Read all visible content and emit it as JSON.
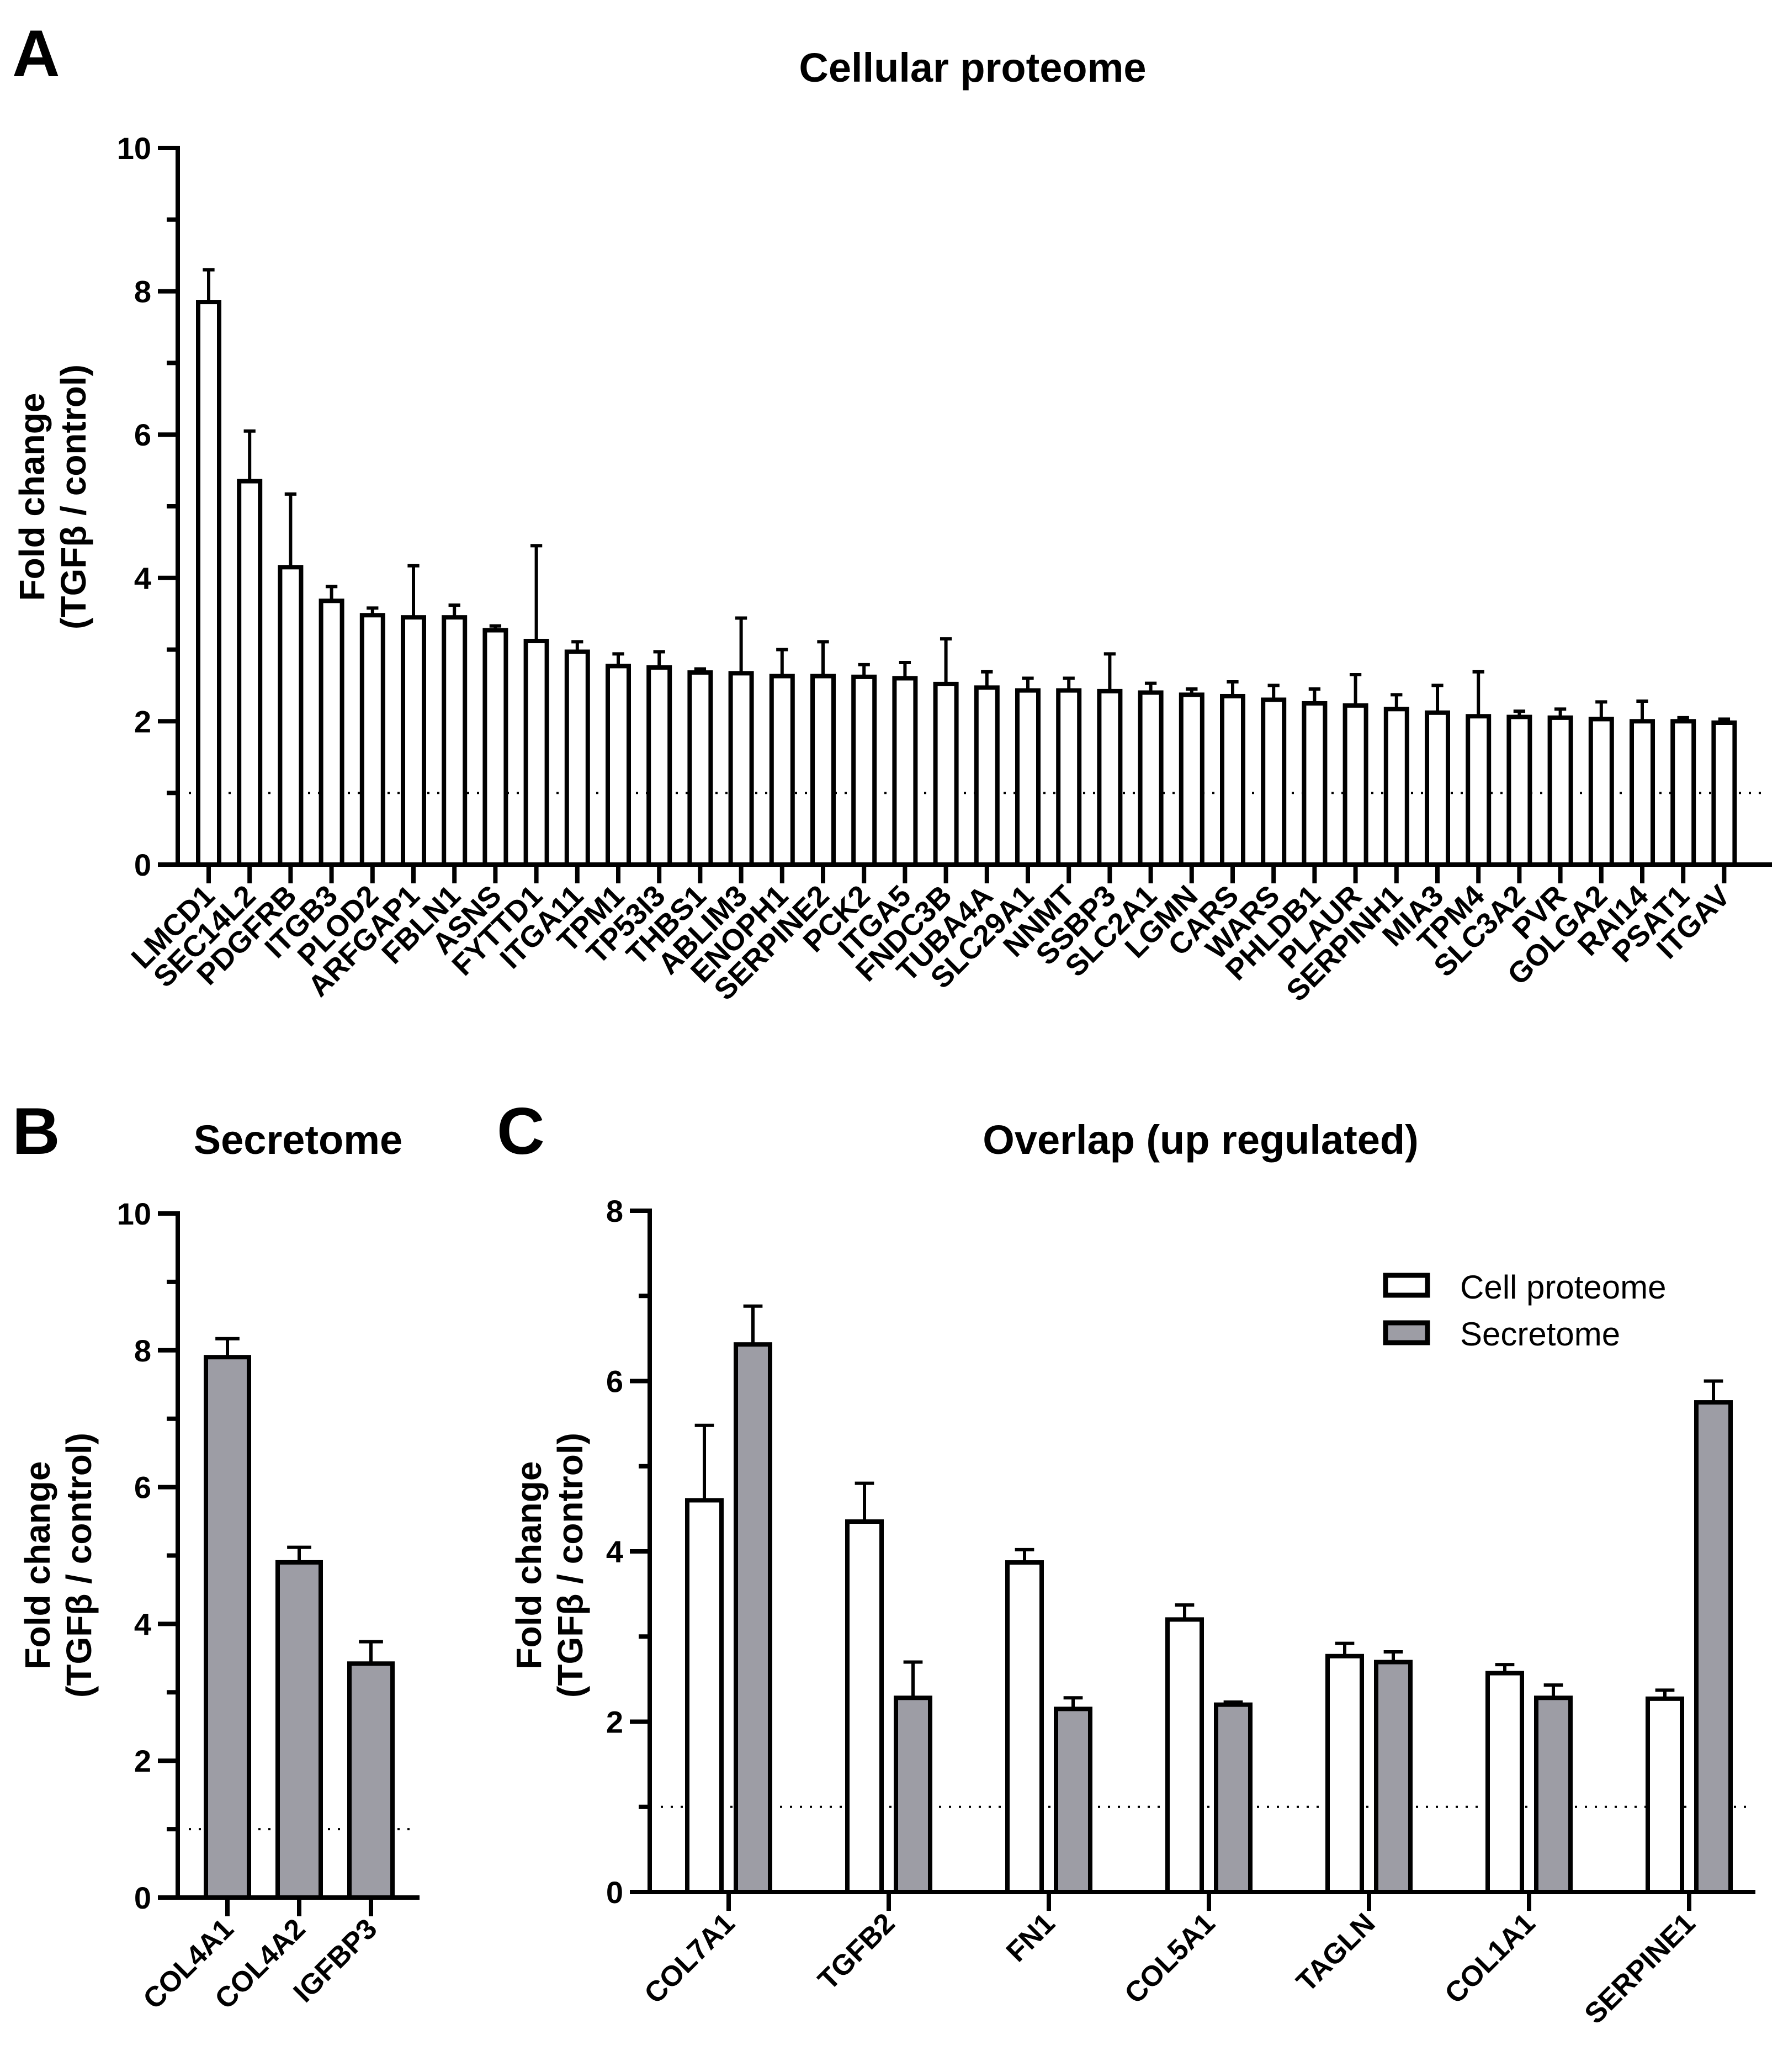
{
  "chart_data": [
    {
      "panel": "A",
      "type": "bar",
      "title": "Cellular proteome",
      "ylabel_line1": "Fold change",
      "ylabel_line2": "(TGFβ / control)",
      "ylim": [
        0,
        10
      ],
      "yticks": [
        "0",
        "2",
        "4",
        "6",
        "8",
        "10"
      ],
      "reference_line": 1,
      "categories": [
        "LMCD1",
        "SEC14L2",
        "PDGFRB",
        "ITGB3",
        "PLOD2",
        "ARFGAP1",
        "FBLN1",
        "ASNS",
        "FYTTD1",
        "ITGA11",
        "TPM1",
        "TP53I3",
        "THBS1",
        "ABLIM3",
        "ENOPH1",
        "SERPINE2",
        "PCK2",
        "ITGA5",
        "FNDC3B",
        "TUBA4A",
        "SLC29A1",
        "NNMT",
        "SSBP3",
        "SLC2A1",
        "LGMN",
        "CARS",
        "WARS",
        "PHLDB1",
        "PLAUR",
        "SERPINH1",
        "MIA3",
        "TPM4",
        "SLC3A2",
        "PVR",
        "GOLGA2",
        "RAI14",
        "PSAT1",
        "ITGAV"
      ],
      "series": [
        {
          "name": "Cell proteome",
          "color": "#ffffff",
          "values": [
            7.85,
            5.35,
            4.15,
            3.68,
            3.48,
            3.45,
            3.45,
            3.27,
            3.12,
            2.97,
            2.77,
            2.75,
            2.68,
            2.67,
            2.63,
            2.63,
            2.62,
            2.6,
            2.52,
            2.47,
            2.43,
            2.43,
            2.42,
            2.4,
            2.37,
            2.35,
            2.3,
            2.25,
            2.22,
            2.17,
            2.12,
            2.07,
            2.06,
            2.05,
            2.03,
            2.0,
            2.0,
            1.98
          ],
          "errors": [
            0.45,
            0.7,
            1.02,
            0.2,
            0.1,
            0.72,
            0.17,
            0.06,
            1.33,
            0.14,
            0.17,
            0.22,
            0.05,
            0.77,
            0.37,
            0.48,
            0.17,
            0.22,
            0.63,
            0.22,
            0.17,
            0.17,
            0.52,
            0.13,
            0.08,
            0.2,
            0.2,
            0.2,
            0.43,
            0.2,
            0.38,
            0.62,
            0.08,
            0.12,
            0.24,
            0.28,
            0.05,
            0.05
          ]
        }
      ]
    },
    {
      "panel": "B",
      "type": "bar",
      "title": "Secretome",
      "ylabel_line1": "Fold change",
      "ylabel_line2": "(TGFβ / control)",
      "ylim": [
        0,
        10
      ],
      "yticks": [
        "0",
        "2",
        "4",
        "6",
        "8",
        "10"
      ],
      "reference_line": 1,
      "categories": [
        "COL4A1",
        "COL4A2",
        "IGFBP3"
      ],
      "series": [
        {
          "name": "Secretome",
          "color": "#9d9da5",
          "values": [
            7.9,
            4.9,
            3.42
          ],
          "errors": [
            0.27,
            0.22,
            0.32
          ]
        }
      ]
    },
    {
      "panel": "C",
      "type": "bar",
      "title": "Overlap (up regulated)",
      "ylabel_line1": "Fold change",
      "ylabel_line2": "(TGFβ / control)",
      "ylim": [
        0,
        8
      ],
      "yticks": [
        "0",
        "2",
        "4",
        "6",
        "8"
      ],
      "reference_line": 1,
      "categories": [
        "COL7A1",
        "TGFB2",
        "FN1",
        "COL5A1",
        "TAGLN",
        "COL1A1",
        "SERPINE1"
      ],
      "legend": [
        "Cell proteome",
        "Secretome"
      ],
      "series": [
        {
          "name": "Cell proteome",
          "color": "#ffffff",
          "values": [
            4.6,
            4.35,
            3.87,
            3.2,
            2.77,
            2.57,
            2.27
          ],
          "errors": [
            0.88,
            0.45,
            0.15,
            0.17,
            0.15,
            0.1,
            0.1
          ]
        },
        {
          "name": "Secretome",
          "color": "#9d9da5",
          "values": [
            6.43,
            2.28,
            2.15,
            2.2,
            2.7,
            2.28,
            5.75
          ],
          "errors": [
            0.45,
            0.42,
            0.13,
            0.03,
            0.12,
            0.15,
            0.25
          ]
        }
      ]
    }
  ]
}
